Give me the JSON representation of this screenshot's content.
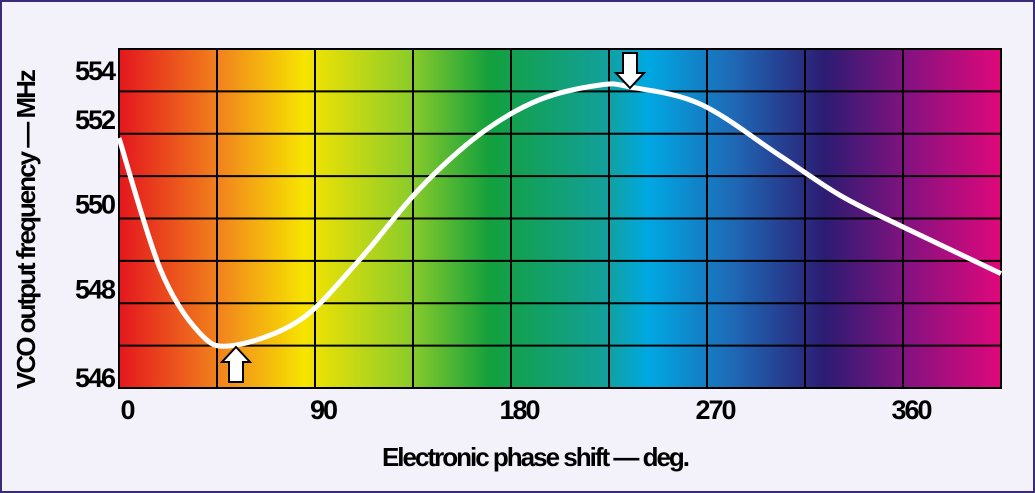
{
  "chart_data": {
    "type": "line",
    "x_label": "Electronic phase shift — deg.",
    "y_label": "VCO output frequency — MHz",
    "xlim": [
      0,
      405
    ],
    "xticks": [
      0,
      90,
      180,
      270,
      360
    ],
    "ylim": [
      546,
      554
    ],
    "yticks": [
      546,
      548,
      550,
      552,
      554
    ],
    "grid": true,
    "x": [
      0,
      19,
      37,
      52,
      83,
      110,
      138,
      166,
      193,
      221,
      235,
      267,
      303,
      331,
      358,
      405
    ],
    "series": [
      {
        "color": "#ffffff",
        "values": [
          551.9,
          548.8,
          547.3,
          547.0,
          547.6,
          549.0,
          550.7,
          552.0,
          552.8,
          553.15,
          553.1,
          552.7,
          551.5,
          550.55,
          549.85,
          548.7
        ]
      }
    ]
  }
}
